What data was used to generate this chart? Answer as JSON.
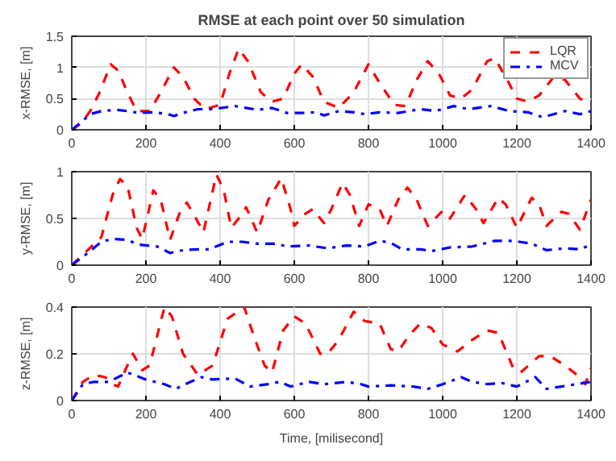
{
  "chart_data": [
    {
      "type": "line",
      "title": "RMSE at each point over 50 simulation",
      "ylabel": "x-RMSE, [m]",
      "xlim": [
        0,
        1400
      ],
      "xticks": [
        0,
        200,
        400,
        600,
        800,
        1000,
        1200,
        1400
      ],
      "ylim": [
        0,
        1.5
      ],
      "yticks": [
        0,
        0.5,
        1,
        1.5
      ],
      "grid": true,
      "legend": "top right",
      "series": [
        {
          "name": "LQR",
          "color": "#ff0000",
          "line_style": "dashed",
          "x": [
            0,
            25,
            50,
            75,
            105,
            125,
            150,
            175,
            210,
            240,
            275,
            300,
            330,
            360,
            400,
            425,
            450,
            475,
            510,
            540,
            570,
            600,
            620,
            650,
            680,
            720,
            760,
            800,
            830,
            870,
            900,
            930,
            960,
            990,
            1020,
            1050,
            1080,
            1120,
            1140,
            1170,
            1200,
            1230,
            1260,
            1300,
            1330,
            1370,
            1400
          ],
          "values": [
            0,
            0.1,
            0.3,
            0.6,
            1.05,
            0.95,
            0.6,
            0.3,
            0.3,
            0.6,
            1.0,
            0.85,
            0.5,
            0.33,
            0.4,
            0.9,
            1.3,
            1.1,
            0.6,
            0.45,
            0.5,
            0.9,
            1.05,
            0.85,
            0.45,
            0.35,
            0.6,
            1.05,
            0.75,
            0.4,
            0.38,
            0.8,
            1.1,
            0.9,
            0.55,
            0.5,
            0.65,
            1.1,
            1.15,
            0.85,
            0.5,
            0.45,
            0.55,
            0.85,
            0.8,
            0.5,
            0.4
          ]
        },
        {
          "name": "MCV",
          "color": "#0000ff",
          "line_style": "dashdot",
          "x": [
            0,
            25,
            50,
            80,
            120,
            150,
            180,
            220,
            260,
            275,
            300,
            340,
            380,
            440,
            470,
            500,
            540,
            580,
            620,
            660,
            680,
            720,
            760,
            790,
            830,
            880,
            940,
            980,
            1030,
            1070,
            1130,
            1180,
            1230,
            1270,
            1330,
            1370,
            1400
          ],
          "values": [
            0,
            0.12,
            0.25,
            0.3,
            0.32,
            0.3,
            0.27,
            0.28,
            0.25,
            0.22,
            0.27,
            0.33,
            0.33,
            0.38,
            0.35,
            0.32,
            0.35,
            0.27,
            0.27,
            0.28,
            0.23,
            0.3,
            0.28,
            0.25,
            0.28,
            0.27,
            0.33,
            0.3,
            0.38,
            0.33,
            0.38,
            0.3,
            0.28,
            0.2,
            0.3,
            0.25,
            0.3
          ]
        }
      ]
    },
    {
      "type": "line",
      "ylabel": "y-RMSE, [m]",
      "xlim": [
        0,
        1400
      ],
      "xticks": [
        0,
        200,
        400,
        600,
        800,
        1000,
        1200,
        1400
      ],
      "ylim": [
        0,
        1
      ],
      "yticks": [
        0,
        0.5,
        1
      ],
      "grid": true,
      "series": [
        {
          "color": "#ff0000",
          "line_style": "dashed",
          "x": [
            0,
            40,
            80,
            110,
            130,
            150,
            175,
            190,
            220,
            240,
            265,
            290,
            310,
            335,
            355,
            390,
            410,
            430,
            450,
            470,
            500,
            530,
            565,
            590,
            600,
            630,
            650,
            680,
            700,
            730,
            750,
            775,
            800,
            830,
            850,
            880,
            905,
            930,
            960,
            1000,
            1020,
            1060,
            1090,
            1110,
            1150,
            1170,
            1200,
            1240,
            1260,
            1280,
            1320,
            1340,
            1370,
            1400
          ],
          "values": [
            0,
            0.15,
            0.3,
            0.75,
            0.92,
            0.85,
            0.4,
            0.28,
            0.8,
            0.7,
            0.27,
            0.55,
            0.67,
            0.5,
            0.35,
            0.97,
            0.8,
            0.4,
            0.5,
            0.62,
            0.35,
            0.7,
            0.93,
            0.6,
            0.42,
            0.55,
            0.6,
            0.45,
            0.6,
            0.88,
            0.75,
            0.42,
            0.65,
            0.6,
            0.42,
            0.7,
            0.83,
            0.7,
            0.42,
            0.58,
            0.5,
            0.75,
            0.6,
            0.45,
            0.72,
            0.65,
            0.4,
            0.72,
            0.65,
            0.42,
            0.57,
            0.55,
            0.38,
            0.7
          ]
        },
        {
          "color": "#0000ff",
          "line_style": "dashdot",
          "x": [
            0,
            40,
            80,
            110,
            150,
            180,
            230,
            265,
            300,
            340,
            370,
            420,
            460,
            500,
            550,
            580,
            640,
            690,
            740,
            790,
            830,
            860,
            890,
            940,
            970,
            1020,
            1080,
            1140,
            1190,
            1240,
            1280,
            1330,
            1370,
            1400
          ],
          "values": [
            0,
            0.12,
            0.25,
            0.28,
            0.27,
            0.22,
            0.2,
            0.13,
            0.16,
            0.17,
            0.17,
            0.25,
            0.25,
            0.23,
            0.23,
            0.2,
            0.21,
            0.18,
            0.21,
            0.2,
            0.26,
            0.24,
            0.17,
            0.17,
            0.15,
            0.19,
            0.2,
            0.26,
            0.26,
            0.23,
            0.16,
            0.18,
            0.17,
            0.22
          ]
        }
      ]
    },
    {
      "type": "line",
      "xlabel": "Time, [milisecond]",
      "ylabel": "z-RMSE, [m]",
      "xlim": [
        0,
        1400
      ],
      "xticks": [
        0,
        200,
        400,
        600,
        800,
        1000,
        1200,
        1400
      ],
      "ylim": [
        0,
        0.4
      ],
      "yticks": [
        0,
        0.2,
        0.4
      ],
      "grid": true,
      "series": [
        {
          "color": "#ff0000",
          "line_style": "dashed",
          "x": [
            0,
            30,
            60,
            90,
            110,
            125,
            150,
            165,
            190,
            210,
            250,
            270,
            300,
            340,
            380,
            420,
            465,
            490,
            520,
            540,
            570,
            600,
            630,
            670,
            690,
            720,
            760,
            790,
            830,
            860,
            880,
            910,
            940,
            970,
            1000,
            1040,
            1080,
            1120,
            1150,
            1190,
            1210,
            1260,
            1290,
            1330,
            1370,
            1385,
            1400
          ],
          "values": [
            0,
            0.08,
            0.11,
            0.1,
            0.07,
            0.06,
            0.15,
            0.2,
            0.13,
            0.15,
            0.4,
            0.36,
            0.2,
            0.11,
            0.15,
            0.35,
            0.4,
            0.28,
            0.15,
            0.12,
            0.3,
            0.36,
            0.33,
            0.2,
            0.2,
            0.26,
            0.38,
            0.34,
            0.33,
            0.22,
            0.21,
            0.28,
            0.33,
            0.31,
            0.24,
            0.21,
            0.26,
            0.3,
            0.29,
            0.14,
            0.12,
            0.19,
            0.19,
            0.15,
            0.1,
            0.07,
            0.14
          ]
        },
        {
          "color": "#0000ff",
          "line_style": "dashdot",
          "x": [
            0,
            30,
            60,
            100,
            150,
            200,
            250,
            280,
            320,
            350,
            380,
            440,
            480,
            530,
            560,
            590,
            640,
            680,
            740,
            780,
            800,
            860,
            920,
            960,
            1000,
            1050,
            1080,
            1120,
            1160,
            1200,
            1250,
            1280,
            1320,
            1360,
            1400
          ],
          "values": [
            0,
            0.07,
            0.08,
            0.08,
            0.12,
            0.09,
            0.07,
            0.05,
            0.08,
            0.1,
            0.09,
            0.095,
            0.06,
            0.07,
            0.08,
            0.06,
            0.08,
            0.07,
            0.08,
            0.07,
            0.06,
            0.065,
            0.06,
            0.05,
            0.07,
            0.1,
            0.08,
            0.07,
            0.075,
            0.06,
            0.1,
            0.05,
            0.06,
            0.07,
            0.08
          ]
        }
      ]
    }
  ]
}
